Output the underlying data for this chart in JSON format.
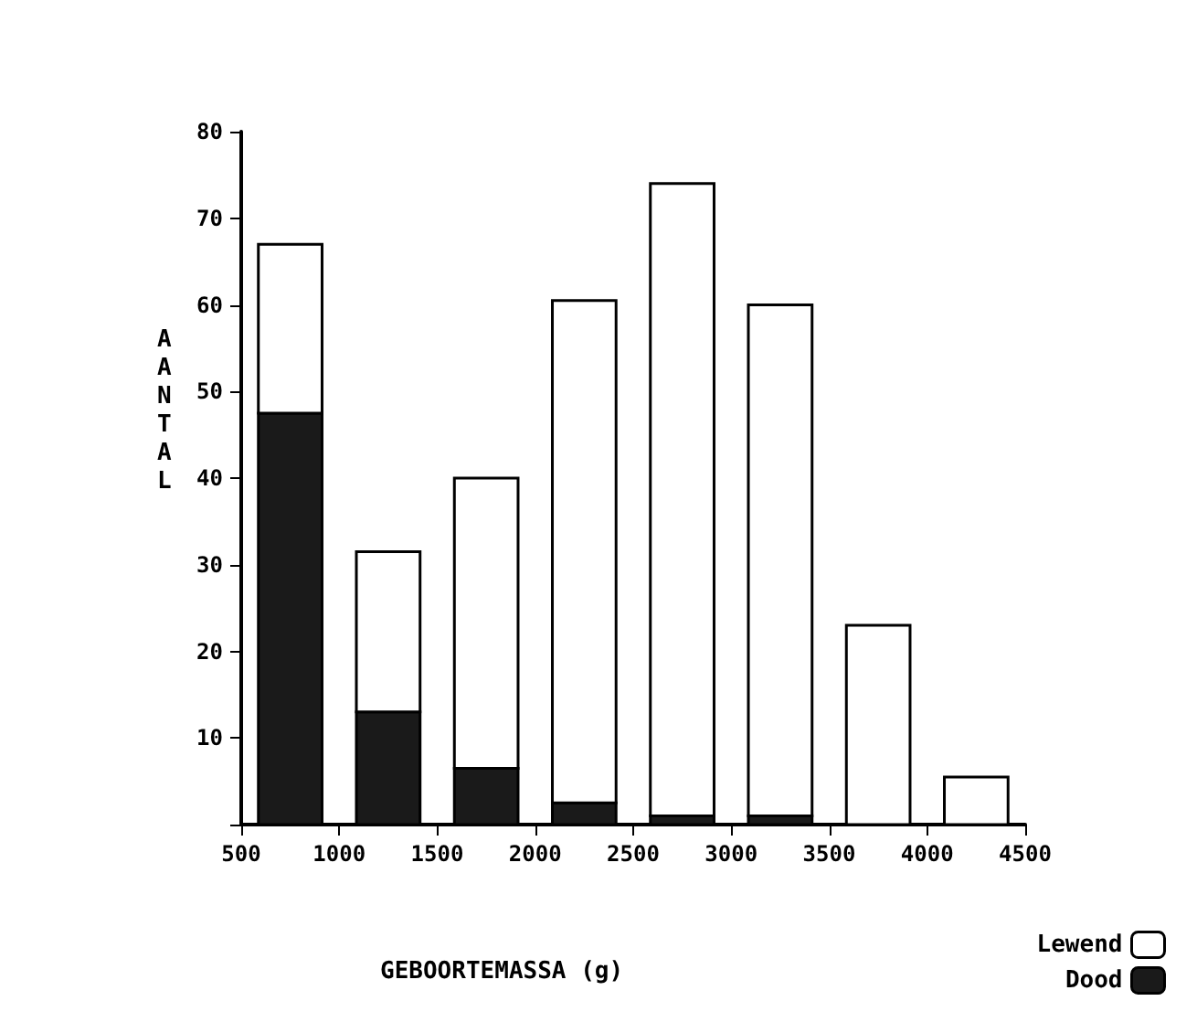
{
  "chart_data": {
    "type": "bar",
    "stacked": true,
    "xlabel": "GEBOORTEMASSA (g)",
    "ylabel": "AANTAL",
    "x": [
      750,
      1250,
      1750,
      2250,
      2750,
      3250,
      3750,
      4250
    ],
    "series": [
      {
        "name": "Dood",
        "color": "#1a1a1a",
        "values": [
          47.5,
          13,
          6.5,
          2.5,
          1,
          1,
          0,
          0
        ]
      },
      {
        "name": "Lewend",
        "color": "#ffffff",
        "values": [
          19.5,
          18.5,
          33.5,
          58,
          73,
          59,
          23,
          5.5
        ]
      }
    ],
    "xlim": [
      500,
      4500
    ],
    "xticks": [
      500,
      1000,
      1500,
      2000,
      2500,
      3000,
      3500,
      4000,
      4500
    ],
    "ylim": [
      0,
      80
    ],
    "yticks": [
      {
        "value": 0,
        "label": null
      },
      10,
      20,
      30,
      40,
      50,
      60,
      70,
      80
    ],
    "grid": false,
    "legend": "bottom right"
  }
}
